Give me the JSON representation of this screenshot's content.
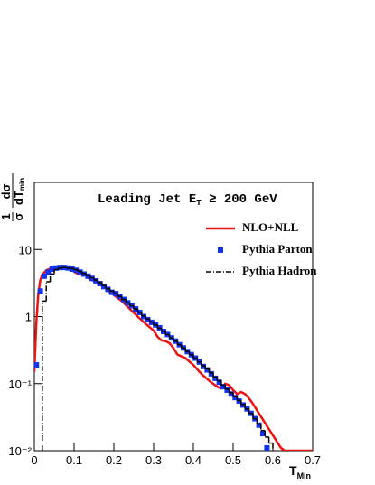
{
  "chart_data": {
    "type": "line",
    "title": {
      "text": "Leading Jet E",
      "sub": "T",
      "rest": " ≥ 200 GeV"
    },
    "xlabel": {
      "text": "T",
      "sub": "Min"
    },
    "ylabel": {
      "num1": "1",
      "den1": "σ",
      "num2": "dσ",
      "den2": "dT",
      "den2_sub": "min"
    },
    "xlim": [
      0,
      0.7
    ],
    "xticks": [
      0,
      0.1,
      0.2,
      0.3,
      0.4,
      0.5,
      0.6,
      0.7
    ],
    "ylim": [
      0.01,
      100
    ],
    "ylog": true,
    "yticks": [
      {
        "value": 0.01,
        "label": "10⁻²"
      },
      {
        "value": 0.1,
        "label": "10⁻¹"
      },
      1,
      10
    ],
    "legend": "upper right",
    "series": [
      {
        "name": "NLO+NLL",
        "color": "#ee1111",
        "style": "solid",
        "x": [
          0,
          0.005,
          0.01,
          0.015,
          0.02,
          0.03,
          0.04,
          0.05,
          0.06,
          0.07,
          0.08,
          0.09,
          0.1,
          0.11,
          0.12,
          0.13,
          0.14,
          0.15,
          0.16,
          0.17,
          0.18,
          0.19,
          0.2,
          0.22,
          0.24,
          0.26,
          0.28,
          0.3,
          0.31,
          0.32,
          0.33,
          0.34,
          0.35,
          0.36,
          0.38,
          0.4,
          0.42,
          0.44,
          0.46,
          0.47,
          0.48,
          0.49,
          0.5,
          0.51,
          0.52,
          0.53,
          0.54,
          0.55,
          0.56,
          0.58,
          0.6,
          0.62,
          0.63,
          0.7
        ],
        "values": [
          0.15,
          0.8,
          2.2,
          3.5,
          4.2,
          4.9,
          5.2,
          5.4,
          5.6,
          5.6,
          5.5,
          5.1,
          4.7,
          4.3,
          4.2,
          4.1,
          3.6,
          3.4,
          3.3,
          2.9,
          2.6,
          2.3,
          2.1,
          1.7,
          1.3,
          1.0,
          0.78,
          0.62,
          0.5,
          0.44,
          0.43,
          0.4,
          0.34,
          0.27,
          0.24,
          0.19,
          0.14,
          0.11,
          0.09,
          0.085,
          0.1,
          0.095,
          0.08,
          0.07,
          0.075,
          0.07,
          0.06,
          0.05,
          0.04,
          0.026,
          0.017,
          0.011,
          0.01,
          0.01
        ]
      },
      {
        "name": "Pythia Parton",
        "color": "#1133ee",
        "style": "square",
        "x": [
          0.005,
          0.015,
          0.025,
          0.035,
          0.045,
          0.055,
          0.065,
          0.075,
          0.085,
          0.095,
          0.105,
          0.115,
          0.125,
          0.135,
          0.145,
          0.155,
          0.165,
          0.175,
          0.185,
          0.195,
          0.205,
          0.215,
          0.225,
          0.235,
          0.245,
          0.255,
          0.265,
          0.275,
          0.285,
          0.295,
          0.305,
          0.315,
          0.325,
          0.335,
          0.345,
          0.355,
          0.365,
          0.375,
          0.385,
          0.395,
          0.405,
          0.415,
          0.425,
          0.435,
          0.445,
          0.455,
          0.465,
          0.475,
          0.485,
          0.495,
          0.505,
          0.515,
          0.525,
          0.535,
          0.545,
          0.555,
          0.565,
          0.575,
          0.585
        ],
        "values": [
          0.19,
          2.4,
          4.0,
          4.6,
          5.1,
          5.3,
          5.4,
          5.4,
          5.3,
          5.1,
          4.9,
          4.6,
          4.3,
          4.0,
          3.7,
          3.4,
          3.1,
          2.8,
          2.55,
          2.3,
          2.2,
          2.0,
          1.8,
          1.6,
          1.45,
          1.3,
          1.15,
          1.0,
          0.9,
          0.82,
          0.75,
          0.68,
          0.6,
          0.54,
          0.48,
          0.43,
          0.38,
          0.34,
          0.3,
          0.27,
          0.24,
          0.21,
          0.18,
          0.16,
          0.14,
          0.12,
          0.105,
          0.09,
          0.08,
          0.07,
          0.062,
          0.055,
          0.048,
          0.042,
          0.036,
          0.03,
          0.024,
          0.018,
          0.011
        ]
      },
      {
        "name": "Pythia Hadron",
        "color": "#000000",
        "style": "dashdot",
        "bins": [
          0.02,
          0.03,
          0.04,
          0.05,
          0.06,
          0.07,
          0.08,
          0.09,
          0.1,
          0.11,
          0.12,
          0.13,
          0.14,
          0.15,
          0.16,
          0.17,
          0.18,
          0.19,
          0.2,
          0.21,
          0.22,
          0.23,
          0.24,
          0.25,
          0.26,
          0.27,
          0.28,
          0.29,
          0.3,
          0.31,
          0.32,
          0.33,
          0.34,
          0.35,
          0.36,
          0.37,
          0.38,
          0.39,
          0.4,
          0.41,
          0.42,
          0.43,
          0.44,
          0.45,
          0.46,
          0.47,
          0.48,
          0.49,
          0.5,
          0.51,
          0.52,
          0.53,
          0.54,
          0.55,
          0.56,
          0.57,
          0.58,
          0.59,
          0.6
        ],
        "values": [
          1.7,
          3.3,
          4.3,
          5.0,
          5.3,
          5.4,
          5.3,
          5.2,
          5.0,
          4.7,
          4.4,
          4.1,
          3.8,
          3.5,
          3.2,
          2.9,
          2.6,
          2.4,
          2.2,
          2.0,
          1.8,
          1.6,
          1.45,
          1.3,
          1.15,
          1.02,
          0.92,
          0.83,
          0.75,
          0.67,
          0.6,
          0.54,
          0.48,
          0.43,
          0.38,
          0.34,
          0.3,
          0.27,
          0.24,
          0.21,
          0.185,
          0.165,
          0.145,
          0.125,
          0.11,
          0.095,
          0.083,
          0.073,
          0.064,
          0.056,
          0.049,
          0.042,
          0.036,
          0.03,
          0.025,
          0.02,
          0.016,
          0.013
        ]
      }
    ]
  }
}
